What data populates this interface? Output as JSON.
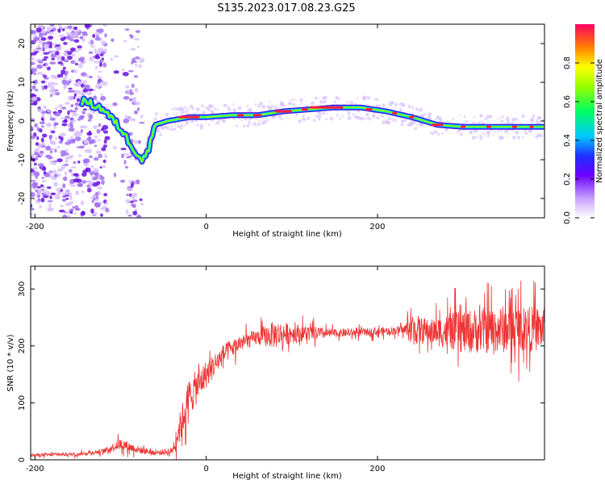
{
  "title": "S135.2023.017.08.23.G25",
  "chart_data": [
    {
      "type": "heatmap",
      "xlabel": "Height of straight line (km)",
      "ylabel": "Frequency (Hz)",
      "xlim": [
        -205,
        395
      ],
      "ylim": [
        -25,
        25
      ],
      "xticks": [
        -200,
        0,
        200
      ],
      "yticks": [
        -20,
        -10,
        0,
        10,
        20
      ],
      "colorbar": {
        "label": "Normalized spectral amplitude",
        "range": [
          0,
          1
        ],
        "ticks": [
          0.0,
          0.2,
          0.4,
          0.6,
          0.8
        ]
      },
      "ridge_center_hz": [
        [
          -140,
          5
        ],
        [
          -120,
          3
        ],
        [
          -100,
          -2
        ],
        [
          -85,
          -7
        ],
        [
          -75,
          -10
        ],
        [
          -68,
          -8
        ],
        [
          -60,
          -1
        ],
        [
          -45,
          0
        ],
        [
          -20,
          1
        ],
        [
          0,
          1
        ],
        [
          30,
          1.5
        ],
        [
          60,
          1.5
        ],
        [
          90,
          2.5
        ],
        [
          120,
          3
        ],
        [
          150,
          3.5
        ],
        [
          180,
          3.5
        ],
        [
          210,
          2.5
        ],
        [
          240,
          1
        ],
        [
          270,
          -1
        ],
        [
          300,
          -1.5
        ],
        [
          340,
          -1.5
        ],
        [
          395,
          -1.5
        ]
      ],
      "noise_region_km": [
        -205,
        -75
      ]
    },
    {
      "type": "line",
      "xlabel": "Height of straight line (km)",
      "ylabel": "SNR (10 * v/v)",
      "xlim": [
        -205,
        395
      ],
      "ylim": [
        0,
        340
      ],
      "xticks": [
        -200,
        0,
        200
      ],
      "yticks": [
        0,
        100,
        200,
        300
      ],
      "series_color": "#ee3333",
      "envelope": {
        "x": [
          -205,
          -150,
          -120,
          -100,
          -80,
          -60,
          -40,
          -30,
          -20,
          0,
          20,
          40,
          60,
          80,
          100,
          150,
          200,
          230,
          240,
          260,
          300,
          350,
          395
        ],
        "y": [
          8,
          10,
          15,
          28,
          18,
          12,
          15,
          60,
          110,
          150,
          185,
          205,
          215,
          220,
          222,
          222,
          225,
          228,
          230,
          225,
          225,
          230,
          230
        ],
        "amp": [
          4,
          4,
          6,
          14,
          10,
          6,
          10,
          40,
          50,
          35,
          25,
          20,
          20,
          35,
          25,
          10,
          10,
          10,
          40,
          30,
          55,
          60,
          55
        ]
      }
    }
  ]
}
